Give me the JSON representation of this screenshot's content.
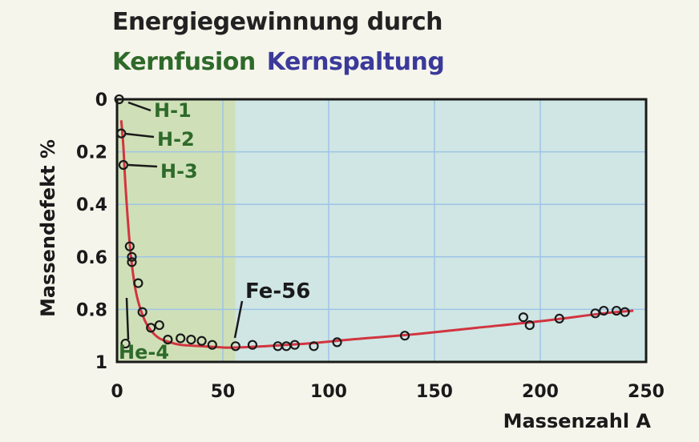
{
  "title": {
    "line1": "Energiegewinnung durch",
    "fusion": "Kernfusion",
    "spaltung": "Kernspaltung"
  },
  "colors": {
    "fusion_bg": "#cfe0b8",
    "fission_bg": "#cfe6e4",
    "curve": "#d2343f",
    "fusion_text": "#2e6a2a",
    "spaltung_text": "#3b3a9a",
    "grid": "#9fc3e6"
  },
  "chart_data": {
    "type": "line",
    "xlabel": "Massenzahl A",
    "ylabel": "Massendefekt %",
    "xlim": [
      0,
      250
    ],
    "ylim": [
      0,
      1
    ],
    "y_inverted": true,
    "x_ticks": [
      "0",
      "50",
      "100",
      "150",
      "200",
      "250"
    ],
    "y_ticks": [
      "0",
      "0.2",
      "0.4",
      "0.6",
      "0.8",
      "1"
    ],
    "fusion_region_x": [
      0,
      56
    ],
    "grid": true,
    "curve": {
      "x": [
        2,
        3,
        4,
        6,
        8,
        10,
        13,
        16,
        20,
        25,
        30,
        40,
        50,
        56,
        70,
        90,
        110,
        140,
        170,
        200,
        230,
        244
      ],
      "y": [
        0.08,
        0.18,
        0.33,
        0.55,
        0.69,
        0.77,
        0.84,
        0.88,
        0.91,
        0.925,
        0.935,
        0.94,
        0.945,
        0.945,
        0.94,
        0.93,
        0.915,
        0.895,
        0.87,
        0.845,
        0.815,
        0.805
      ]
    },
    "points": {
      "x": [
        1,
        2,
        3,
        4,
        6,
        7,
        7,
        10,
        12,
        16,
        20,
        24,
        30,
        35,
        40,
        45,
        56,
        64,
        76,
        80,
        84,
        93,
        104,
        136,
        192,
        195,
        209,
        226,
        230,
        236,
        240
      ],
      "y": [
        0.0,
        0.13,
        0.25,
        0.93,
        0.56,
        0.6,
        0.62,
        0.7,
        0.81,
        0.87,
        0.86,
        0.915,
        0.91,
        0.915,
        0.92,
        0.935,
        0.94,
        0.935,
        0.94,
        0.94,
        0.935,
        0.94,
        0.925,
        0.9,
        0.83,
        0.86,
        0.835,
        0.815,
        0.805,
        0.805,
        0.81
      ]
    },
    "annotations": [
      {
        "label": "H-1",
        "x": 1,
        "y": 0.0
      },
      {
        "label": "H-2",
        "x": 2,
        "y": 0.13
      },
      {
        "label": "H-3",
        "x": 3,
        "y": 0.25
      },
      {
        "label": "He-4",
        "x": 4,
        "y": 0.93
      },
      {
        "label": "Fe-56",
        "x": 56,
        "y": 0.94
      }
    ]
  }
}
